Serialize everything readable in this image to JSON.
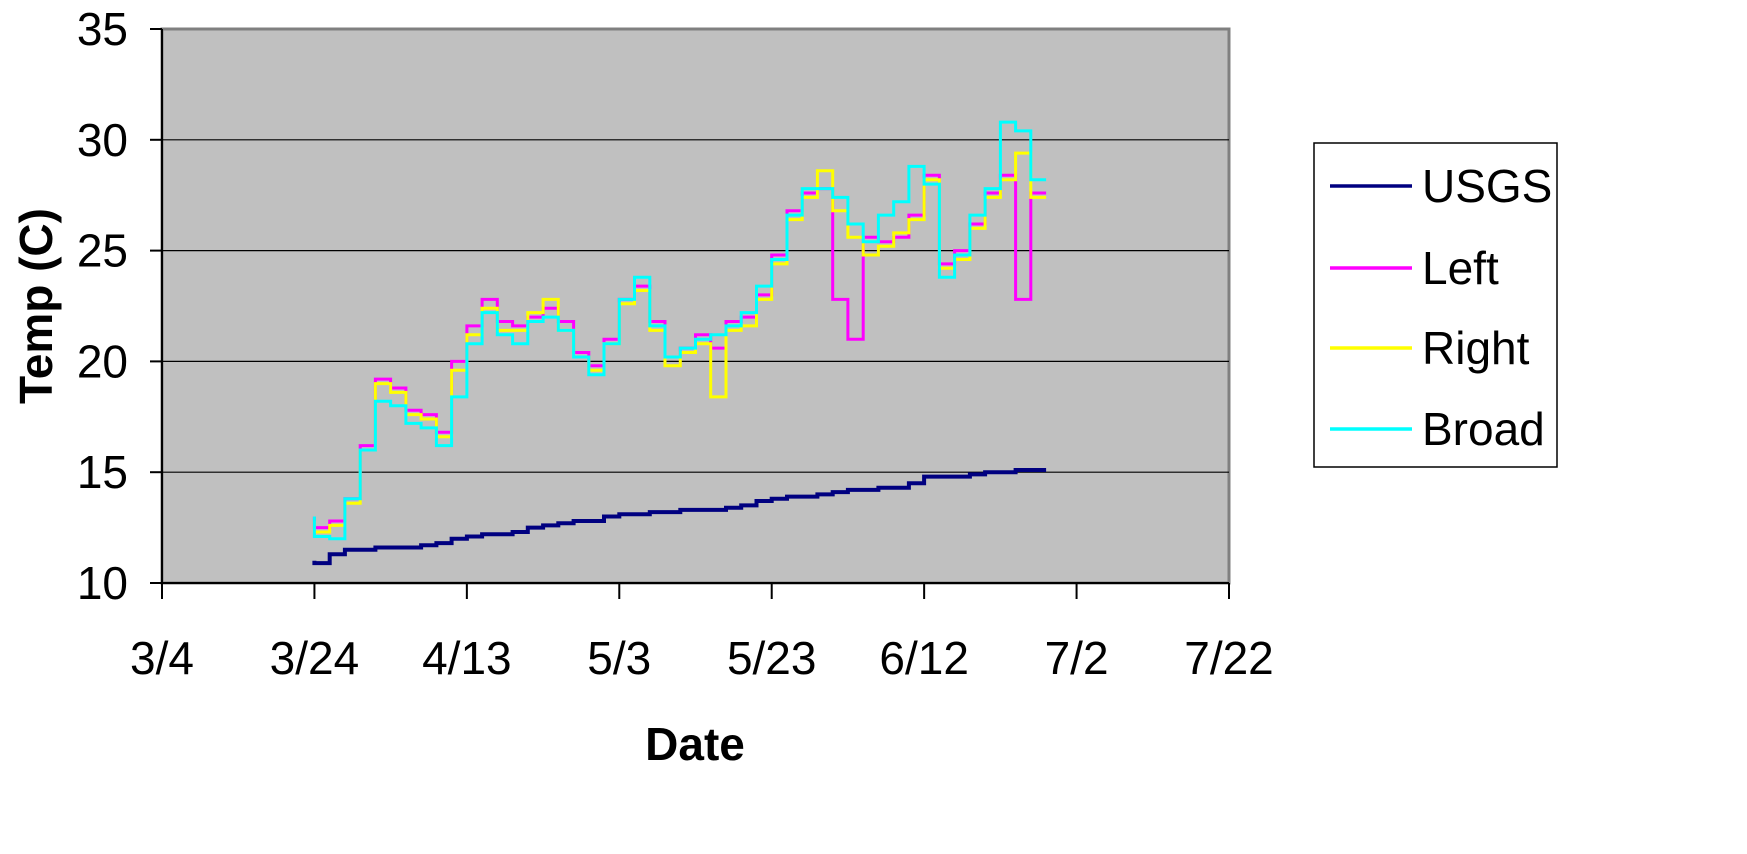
{
  "chart_data": {
    "type": "line",
    "title": "",
    "xlabel": "Date",
    "ylabel": "Temp (C)",
    "xlim": [
      "3/4",
      "7/22"
    ],
    "ylim": [
      10,
      35
    ],
    "x_ticks": [
      "3/4",
      "3/24",
      "4/13",
      "5/3",
      "5/23",
      "6/12",
      "7/2",
      "7/22"
    ],
    "y_ticks": [
      "10",
      "15",
      "20",
      "25",
      "30",
      "35"
    ],
    "grid": "horizontal",
    "legend_position": "right",
    "plot_background": "#c0c0c0",
    "x": [
      "3/24",
      "3/26",
      "3/28",
      "3/30",
      "4/1",
      "4/3",
      "4/5",
      "4/7",
      "4/9",
      "4/11",
      "4/13",
      "4/15",
      "4/17",
      "4/19",
      "4/21",
      "4/23",
      "4/25",
      "4/27",
      "4/29",
      "5/1",
      "5/3",
      "5/5",
      "5/7",
      "5/9",
      "5/11",
      "5/13",
      "5/15",
      "5/17",
      "5/19",
      "5/21",
      "5/23",
      "5/25",
      "5/27",
      "5/29",
      "5/31",
      "6/2",
      "6/4",
      "6/6",
      "6/8",
      "6/10",
      "6/12",
      "6/14",
      "6/16",
      "6/18",
      "6/20",
      "6/22",
      "6/24",
      "6/26",
      "6/28"
    ],
    "series": [
      {
        "name": "USGS",
        "color": "#000080",
        "values": [
          11.0,
          10.9,
          11.3,
          11.5,
          11.5,
          11.6,
          11.6,
          11.6,
          11.7,
          11.8,
          12.0,
          12.1,
          12.2,
          12.2,
          12.3,
          12.5,
          12.6,
          12.7,
          12.8,
          12.8,
          13.0,
          13.1,
          13.1,
          13.2,
          13.2,
          13.3,
          13.3,
          13.3,
          13.4,
          13.5,
          13.7,
          13.8,
          13.9,
          13.9,
          14.0,
          14.1,
          14.2,
          14.2,
          14.3,
          14.3,
          14.5,
          14.8,
          14.8,
          14.8,
          14.9,
          15.0,
          15.0,
          15.1,
          15.1
        ]
      },
      {
        "name": "Left",
        "color": "#ff00ff",
        "values": [
          13.0,
          12.5,
          12.8,
          13.8,
          16.2,
          19.2,
          18.8,
          17.8,
          17.6,
          16.8,
          20.0,
          21.6,
          22.8,
          21.8,
          21.6,
          22.0,
          22.4,
          21.8,
          20.4,
          19.8,
          21.0,
          22.8,
          23.4,
          21.8,
          20.2,
          20.6,
          21.2,
          20.6,
          21.8,
          22.0,
          23.0,
          24.8,
          26.8,
          27.6,
          27.8,
          22.8,
          21.0,
          25.6,
          25.4,
          25.6,
          26.6,
          28.4,
          24.4,
          25.0,
          26.2,
          27.6,
          28.4,
          22.8,
          27.6
        ]
      },
      {
        "name": "Right",
        "color": "#ffff00",
        "values": [
          12.8,
          12.3,
          12.6,
          13.6,
          16.0,
          19.0,
          18.6,
          17.6,
          17.4,
          16.6,
          19.6,
          21.2,
          22.4,
          21.4,
          21.4,
          22.2,
          22.8,
          21.4,
          20.2,
          19.6,
          20.8,
          22.6,
          23.2,
          21.4,
          19.8,
          20.4,
          20.8,
          18.4,
          21.4,
          21.6,
          22.8,
          24.4,
          26.4,
          27.4,
          28.6,
          26.8,
          25.6,
          24.8,
          25.2,
          25.8,
          26.4,
          28.2,
          24.2,
          24.6,
          26.0,
          27.4,
          28.2,
          29.4,
          27.4
        ]
      },
      {
        "name": "Broad",
        "color": "#00ffff",
        "values": [
          13.0,
          12.1,
          12.0,
          13.8,
          16.0,
          18.2,
          18.0,
          17.2,
          17.0,
          16.2,
          18.4,
          20.8,
          22.2,
          21.2,
          20.8,
          21.8,
          22.0,
          21.4,
          20.2,
          19.4,
          20.8,
          22.8,
          23.8,
          21.6,
          20.2,
          20.6,
          21.0,
          21.2,
          21.6,
          22.2,
          23.4,
          24.6,
          26.6,
          27.8,
          27.8,
          27.4,
          26.2,
          25.4,
          26.6,
          27.2,
          28.8,
          28.0,
          23.8,
          24.8,
          26.6,
          27.8,
          30.8,
          30.4,
          28.2
        ]
      }
    ]
  }
}
